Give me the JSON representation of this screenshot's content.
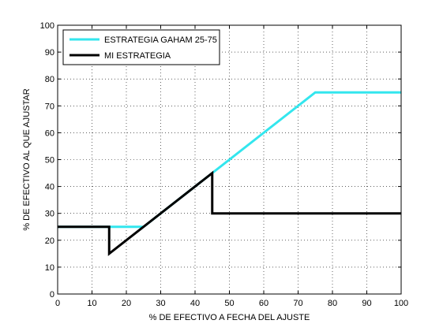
{
  "chart_data": {
    "type": "line",
    "xlabel": "% DE EFECTIVO A FECHA DEL AJUSTE",
    "ylabel": "% DE EFECTIVO AL QUE AJUSTAR",
    "xlim": [
      0,
      100
    ],
    "ylim": [
      0,
      100
    ],
    "xticks": [
      0,
      10,
      20,
      30,
      40,
      50,
      60,
      70,
      80,
      90,
      100
    ],
    "yticks": [
      0,
      10,
      20,
      30,
      40,
      50,
      60,
      70,
      80,
      90,
      100
    ],
    "grid": true,
    "legend_position": "top-left",
    "series": [
      {
        "name": "ESTRATEGIA GAHAM 25-75",
        "color": "#33e6ee",
        "x": [
          0,
          25,
          75,
          100
        ],
        "y": [
          25,
          25,
          75,
          75
        ]
      },
      {
        "name": "MI ESTRATEGIA",
        "color": "#000000",
        "x": [
          0,
          15,
          15,
          45,
          45,
          100
        ],
        "y": [
          25,
          25,
          15,
          45,
          30,
          30
        ]
      }
    ]
  }
}
